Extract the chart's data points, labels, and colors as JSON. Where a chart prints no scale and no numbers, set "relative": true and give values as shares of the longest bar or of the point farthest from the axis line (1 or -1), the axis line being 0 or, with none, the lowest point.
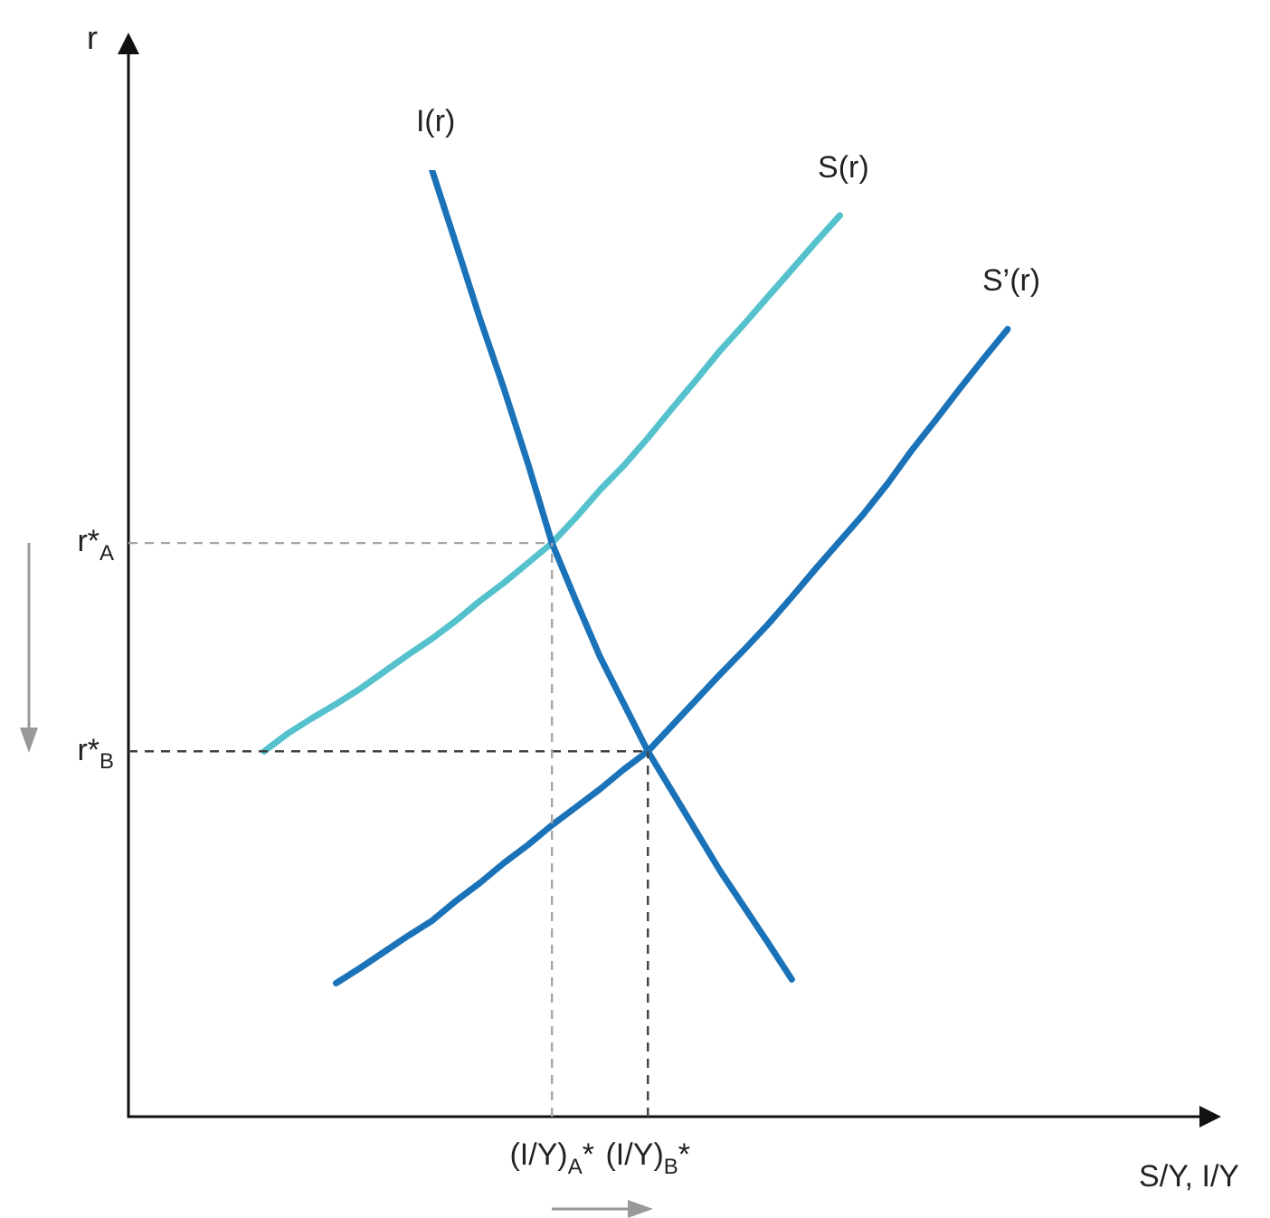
{
  "chart_data": {
    "type": "line",
    "relative": true,
    "xlabel": "S/Y, I/Y",
    "annotations": [
      "r"
    ],
    "legend": false,
    "marker": "none",
    "line_style": "solid",
    "categories": [
      null,
      null,
      null,
      null,
      null,
      null,
      null,
      null,
      null,
      null,
      null,
      null,
      "(I/Y)$_{A}$*",
      null,
      null,
      null,
      "(I/Y)$_{B}$*",
      null,
      null,
      null,
      null,
      null,
      null,
      null,
      null,
      null,
      null,
      null,
      null,
      null,
      null,
      null
    ],
    "series": [
      {
        "name": "I(r)",
        "color": "#1a72b8",
        "values": [
          null,
          null,
          null,
          null,
          null,
          null,
          null,
          1.0,
          0.922,
          0.843,
          0.769,
          0.69,
          0.606,
          0.545,
          0.486,
          0.436,
          0.386,
          0.344,
          0.302,
          0.26,
          0.222,
          0.184,
          0.145,
          null,
          null,
          null,
          null,
          null,
          null,
          null,
          null,
          null
        ]
      },
      {
        "name": "S(r)",
        "color": "#55c1cd",
        "values": [
          0.386,
          0.405,
          0.421,
          0.436,
          0.452,
          0.47,
          0.488,
          0.505,
          0.524,
          0.545,
          0.564,
          0.585,
          0.606,
          0.633,
          0.662,
          0.688,
          0.717,
          0.748,
          0.778,
          0.809,
          0.837,
          0.866,
          0.895,
          0.924,
          0.952,
          null,
          null,
          null,
          null,
          null,
          null,
          null
        ]
      },
      {
        "name": "S’(r)",
        "color": "#1a72b8",
        "values": [
          null,
          null,
          null,
          0.141,
          0.157,
          0.174,
          0.191,
          0.207,
          0.228,
          0.247,
          0.268,
          0.287,
          0.308,
          0.327,
          0.346,
          0.367,
          0.386,
          0.413,
          0.44,
          0.467,
          0.493,
          0.52,
          0.549,
          0.579,
          0.608,
          0.637,
          0.669,
          0.704,
          0.736,
          0.769,
          0.801,
          0.832
        ]
      }
    ],
    "ref_lines": [
      {
        "axis": "y",
        "value": 0.606,
        "label": "r*$_{A}$",
        "color": "#a6a6a6",
        "line_style": "dashed"
      },
      {
        "axis": "y",
        "value": 0.386,
        "label": "r*$_{B}$",
        "color": "#404040",
        "line_style": "dashed"
      },
      {
        "axis": "x",
        "value": "(I/Y)$_{A}$*",
        "color": "#a6a6a6",
        "line_style": "dashed"
      },
      {
        "axis": "x",
        "value": "(I/Y)$_{B}$*",
        "color": "#404040",
        "line_style": "dashed"
      }
    ]
  }
}
